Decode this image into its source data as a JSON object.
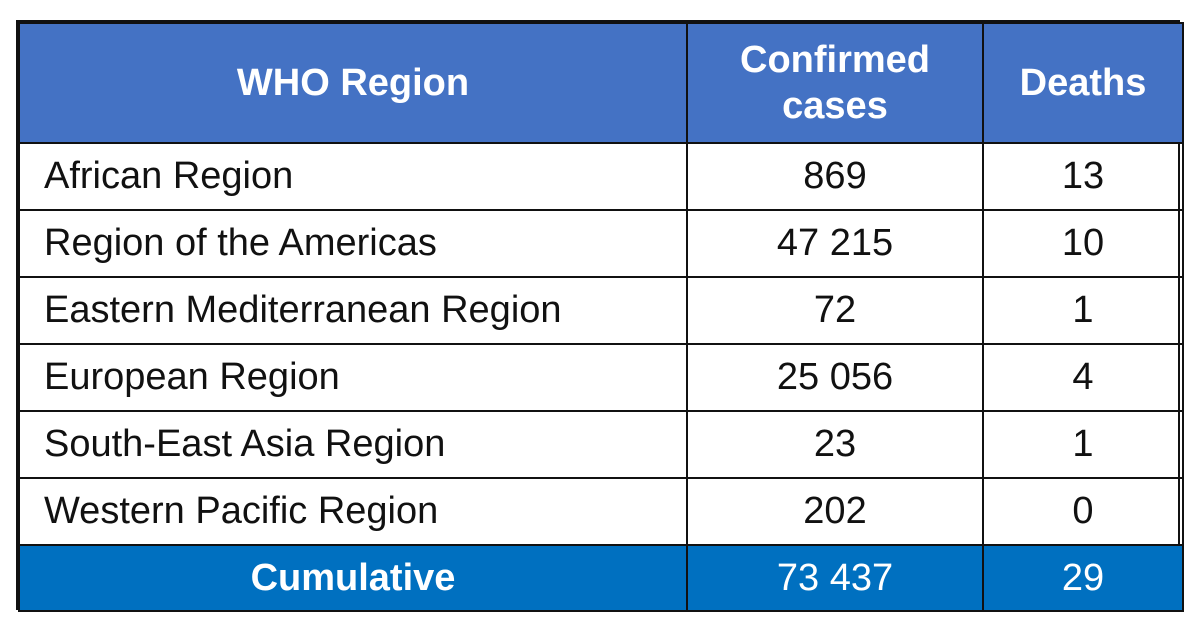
{
  "table": {
    "headers": {
      "region": "WHO Region",
      "confirmed": "Confirmed cases",
      "deaths": "Deaths"
    },
    "rows": [
      {
        "region": "African Region",
        "confirmed": "869",
        "deaths": "13"
      },
      {
        "region": "Region of the Americas",
        "confirmed": "47 215",
        "deaths": "10"
      },
      {
        "region": "Eastern Mediterranean Region",
        "confirmed": "72",
        "deaths": "1"
      },
      {
        "region": "European Region",
        "confirmed": "25 056",
        "deaths": "4"
      },
      {
        "region": "South-East Asia Region",
        "confirmed": "23",
        "deaths": "1"
      },
      {
        "region": "Western Pacific Region",
        "confirmed": "202",
        "deaths": "0"
      }
    ],
    "total": {
      "label": "Cumulative",
      "confirmed": "73 437",
      "deaths": "29"
    }
  },
  "colors": {
    "header_bg": "#4472c4",
    "total_bg": "#0070c0",
    "header_text": "#ffffff",
    "border": "#111111"
  }
}
